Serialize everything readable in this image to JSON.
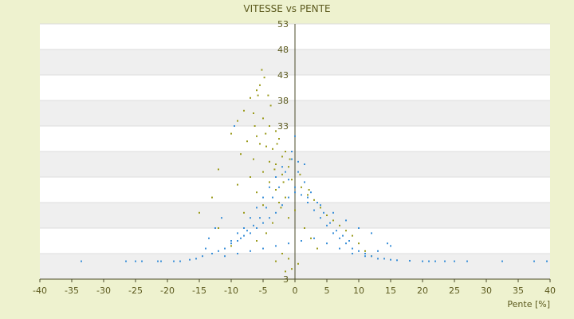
{
  "chart_data": {
    "type": "scatter",
    "title": "VITESSE vs PENTE",
    "xlabel": "Pente [%]",
    "ylabel": "",
    "xlim": [
      -40,
      40
    ],
    "ylim": [
      3,
      53
    ],
    "x_ticks": [
      -40,
      -35,
      -30,
      -25,
      -20,
      -15,
      -10,
      -5,
      0,
      5,
      10,
      15,
      20,
      25,
      30,
      35,
      40
    ],
    "y_tick_labels": [
      {
        "value": 53,
        "label": "53"
      },
      {
        "value": 48,
        "label": "48"
      },
      {
        "value": 43,
        "label": "43"
      },
      {
        "value": 38,
        "label": "38"
      },
      {
        "value": 33,
        "label": "33"
      },
      {
        "value": 3,
        "label": "3"
      }
    ],
    "y_gridlines": [
      3,
      8,
      13,
      18,
      23,
      28,
      33,
      38,
      43,
      48,
      53
    ],
    "grid": true,
    "series": [
      {
        "color": "#9a9a1a",
        "points": [
          [
            -5.2,
            44
          ],
          [
            -4.8,
            42.5
          ],
          [
            -5.5,
            41
          ],
          [
            -6,
            40
          ],
          [
            -4.2,
            39
          ],
          [
            -7,
            38.5
          ],
          [
            -3.8,
            37
          ],
          [
            -8,
            36
          ],
          [
            -6.5,
            35.5
          ],
          [
            -5,
            34.5
          ],
          [
            -9,
            34
          ],
          [
            -4,
            33
          ],
          [
            -3,
            32
          ],
          [
            -10,
            31.5
          ],
          [
            -6,
            31
          ],
          [
            -2.5,
            30.5
          ],
          [
            -7.5,
            30
          ],
          [
            -5.5,
            29.5
          ],
          [
            -4.5,
            29
          ],
          [
            -3.5,
            28.5
          ],
          [
            -1.5,
            28
          ],
          [
            -8.5,
            27.5
          ],
          [
            -2,
            27
          ],
          [
            -6.5,
            26.5
          ],
          [
            -4,
            26
          ],
          [
            -3,
            25.5
          ],
          [
            -1,
            25
          ],
          [
            -12,
            24.5
          ],
          [
            -5,
            24
          ],
          [
            -2,
            23.5
          ],
          [
            -7,
            23
          ],
          [
            -0.5,
            22.5
          ],
          [
            -4,
            22
          ],
          [
            -9,
            21.5
          ],
          [
            1,
            21
          ],
          [
            -3,
            20.5
          ],
          [
            -6,
            20
          ],
          [
            2,
            19.5
          ],
          [
            -1.5,
            19
          ],
          [
            -13,
            19
          ],
          [
            3,
            18.5
          ],
          [
            -2.5,
            18
          ],
          [
            -5,
            17.5
          ],
          [
            4,
            17
          ],
          [
            0,
            16.5
          ],
          [
            -8,
            16
          ],
          [
            -15,
            16
          ],
          [
            5,
            15.5
          ],
          [
            -1,
            15
          ],
          [
            6,
            14.5
          ],
          [
            -3.5,
            14
          ],
          [
            7,
            13.5
          ],
          [
            -12,
            13
          ],
          [
            1.5,
            13
          ],
          [
            8,
            12.5
          ],
          [
            -4.5,
            12
          ],
          [
            9,
            11.5
          ],
          [
            2.5,
            11
          ],
          [
            -6,
            10.5
          ],
          [
            10,
            10
          ],
          [
            -10,
            9.5
          ],
          [
            3.5,
            9
          ],
          [
            11,
            8.5
          ],
          [
            -2,
            8
          ],
          [
            -1,
            7
          ],
          [
            -3,
            6.5
          ],
          [
            0.5,
            6
          ],
          [
            -0.5,
            5
          ],
          [
            -1.5,
            4.5
          ],
          [
            12,
            7.5
          ],
          [
            -5.8,
            39
          ],
          [
            -6.3,
            33
          ],
          [
            -4.6,
            31.5
          ],
          [
            -2.8,
            29.5
          ],
          [
            -0.8,
            26.5
          ],
          [
            -3.2,
            24.5
          ],
          [
            0.8,
            23.5
          ],
          [
            -1.8,
            22
          ],
          [
            2.2,
            20.5
          ],
          [
            -2.2,
            17
          ]
        ]
      },
      {
        "color": "#3a8fd8",
        "points": [
          [
            -33.5,
            6.5
          ],
          [
            -26.5,
            6.5
          ],
          [
            -25,
            6.5
          ],
          [
            -24,
            6.5
          ],
          [
            -21.5,
            6.5
          ],
          [
            -21,
            6.5
          ],
          [
            -19,
            6.5
          ],
          [
            -18,
            6.5
          ],
          [
            -16.5,
            6.8
          ],
          [
            -15.5,
            7
          ],
          [
            -14.5,
            7.5
          ],
          [
            -13,
            8
          ],
          [
            -12,
            8.5
          ],
          [
            -11,
            9
          ],
          [
            -10,
            10
          ],
          [
            -9,
            10.5
          ],
          [
            -8,
            11.5
          ],
          [
            -7,
            12
          ],
          [
            -6,
            13
          ],
          [
            -5,
            14
          ],
          [
            -4,
            15
          ],
          [
            -3,
            16
          ],
          [
            -2,
            17.5
          ],
          [
            -1,
            19
          ],
          [
            0,
            20
          ],
          [
            1,
            19.5
          ],
          [
            2,
            18
          ],
          [
            3,
            16.5
          ],
          [
            4,
            15
          ],
          [
            5,
            13.5
          ],
          [
            6,
            12
          ],
          [
            7,
            11
          ],
          [
            8,
            10
          ],
          [
            9,
            9
          ],
          [
            10,
            8.5
          ],
          [
            11,
            8
          ],
          [
            12,
            7.5
          ],
          [
            13,
            7
          ],
          [
            14,
            7
          ],
          [
            15,
            6.8
          ],
          [
            16,
            6.7
          ],
          [
            18,
            6.6
          ],
          [
            20,
            6.5
          ],
          [
            21,
            6.5
          ],
          [
            22,
            6.5
          ],
          [
            23.5,
            6.5
          ],
          [
            25,
            6.5
          ],
          [
            27,
            6.5
          ],
          [
            32.5,
            6.5
          ],
          [
            37.5,
            6.5
          ],
          [
            39.5,
            6.5
          ],
          [
            -9.5,
            33
          ],
          [
            0,
            31
          ],
          [
            -0.5,
            28
          ],
          [
            0.5,
            26
          ],
          [
            -1.5,
            24
          ],
          [
            1.5,
            22
          ],
          [
            -2.5,
            21
          ],
          [
            2.5,
            20
          ],
          [
            -3.5,
            19
          ],
          [
            3.5,
            18
          ],
          [
            -4.5,
            17
          ],
          [
            4.5,
            16
          ],
          [
            -5.5,
            15
          ],
          [
            5.5,
            14
          ],
          [
            -6.5,
            13.5
          ],
          [
            6.5,
            12.5
          ],
          [
            -7.5,
            12.5
          ],
          [
            7.5,
            11.5
          ],
          [
            -8.5,
            11
          ],
          [
            8.5,
            10.5
          ],
          [
            -11.5,
            15
          ],
          [
            -12.5,
            13
          ],
          [
            -13.5,
            11
          ],
          [
            -14,
            9
          ],
          [
            -11,
            7.5
          ],
          [
            -9,
            8
          ],
          [
            -7,
            8.5
          ],
          [
            -5,
            9
          ],
          [
            -3,
            9.5
          ],
          [
            -1,
            10
          ],
          [
            1,
            10.5
          ],
          [
            3,
            11
          ],
          [
            5,
            10
          ],
          [
            7,
            9
          ],
          [
            9,
            8
          ],
          [
            11,
            7.5
          ],
          [
            13,
            8.5
          ],
          [
            15,
            9.5
          ],
          [
            14.5,
            10
          ],
          [
            12,
            12
          ],
          [
            10,
            13
          ],
          [
            8,
            14.5
          ],
          [
            6,
            16
          ],
          [
            4,
            17.5
          ],
          [
            2,
            19
          ],
          [
            0,
            21
          ],
          [
            -1,
            22.5
          ],
          [
            0.5,
            24
          ],
          [
            1.5,
            25.5
          ],
          [
            -0.5,
            26.5
          ],
          [
            -2,
            25
          ],
          [
            -3,
            23
          ],
          [
            -4,
            21
          ],
          [
            -5,
            19
          ],
          [
            -6,
            17
          ],
          [
            -7,
            15
          ],
          [
            -8,
            13
          ],
          [
            -9,
            12
          ],
          [
            -10,
            10.5
          ]
        ]
      }
    ]
  }
}
